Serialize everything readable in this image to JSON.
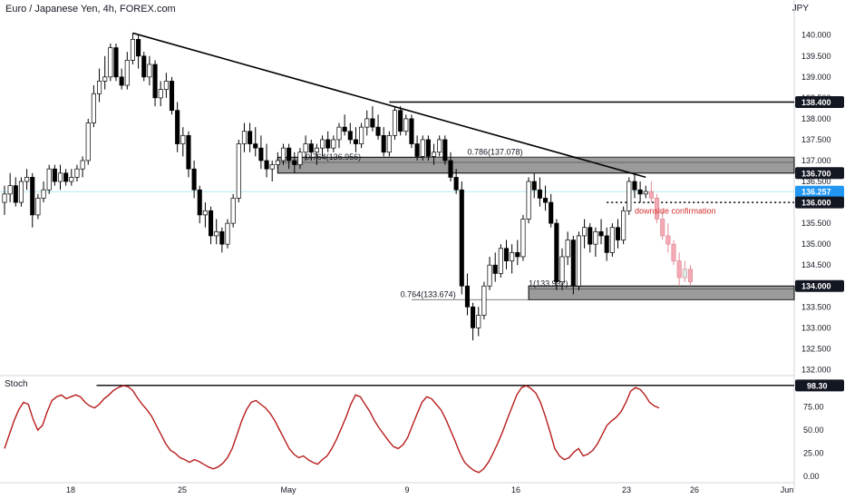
{
  "header": {
    "title": "Euro / Japanese Yen, 4h, FOREX.com",
    "currency": "JPY"
  },
  "stoch_label": "Stoch",
  "chart_data": {
    "type": "candlestick",
    "price_axis": {
      "ylim": [
        131.9,
        140.45
      ],
      "ticks": [
        "140.000",
        "139.500",
        "139.000",
        "138.500",
        "138.000",
        "137.500",
        "137.000",
        "136.500",
        "136.000",
        "135.500",
        "135.000",
        "134.500",
        "134.000",
        "133.500",
        "133.000",
        "132.500",
        "132.000"
      ],
      "tick_values": [
        140.0,
        139.5,
        139.0,
        138.5,
        138.0,
        137.5,
        137.0,
        136.5,
        136.0,
        135.5,
        135.0,
        134.5,
        134.0,
        133.5,
        133.0,
        132.5,
        132.0
      ]
    },
    "x_axis": {
      "ticks": [
        "18",
        "25",
        "May",
        "9",
        "16",
        "23",
        "26",
        "Jun"
      ]
    },
    "price_labels": [
      {
        "text": "138.400",
        "value": 138.4,
        "style": "dark"
      },
      {
        "text": "136.700",
        "value": 136.7,
        "style": "dark"
      },
      {
        "text": "136.257",
        "value": 136.257,
        "style": "blue",
        "sub": "03:17:40"
      },
      {
        "text": "136.000",
        "value": 136.0,
        "style": "dark"
      },
      {
        "text": "134.000",
        "value": 134.0,
        "style": "dark"
      }
    ],
    "horizontal_lines": [
      {
        "value": 138.4,
        "from_time": 69,
        "style": "solid"
      },
      {
        "value": 136.0,
        "from_time": 108,
        "style": "dotted"
      }
    ],
    "trendline": {
      "from": [
        23,
        140.05
      ],
      "to": [
        115,
        136.6
      ]
    },
    "zones": [
      {
        "from_time": 49,
        "low": 136.7,
        "high": 137.08
      },
      {
        "from_time": 94,
        "low": 133.67,
        "high": 134.0
      }
    ],
    "fib_levels": [
      {
        "label": "0.786(137.078)",
        "value": 137.078,
        "from_time": 75,
        "label_time": 83
      },
      {
        "label": "0.764(136.956)",
        "value": 136.956,
        "from_time": 49,
        "label_time": 54
      },
      {
        "label": "0.764(133.674)",
        "value": 133.674,
        "from_time": 73,
        "label_time": 71
      },
      {
        "label": "1(133.932)",
        "value": 133.932,
        "from_time": 94,
        "label_time": 94
      }
    ],
    "annotations": [
      {
        "text": "downside confirmation",
        "time": 113,
        "value": 135.8
      }
    ],
    "candles": [
      [
        136.0,
        136.4,
        135.7,
        136.2
      ],
      [
        136.2,
        136.7,
        136.0,
        136.4
      ],
      [
        136.4,
        136.6,
        135.9,
        136.0
      ],
      [
        136.0,
        136.6,
        135.9,
        136.5
      ],
      [
        136.5,
        136.8,
        136.3,
        136.6
      ],
      [
        136.6,
        136.7,
        135.4,
        135.7
      ],
      [
        135.7,
        136.2,
        135.6,
        136.1
      ],
      [
        136.1,
        136.5,
        136.0,
        136.3
      ],
      [
        136.3,
        136.9,
        136.2,
        136.8
      ],
      [
        136.8,
        136.9,
        136.4,
        136.5
      ],
      [
        136.5,
        136.9,
        136.3,
        136.7
      ],
      [
        136.7,
        136.8,
        136.4,
        136.5
      ],
      [
        136.5,
        136.8,
        136.4,
        136.6
      ],
      [
        136.6,
        136.9,
        136.5,
        136.8
      ],
      [
        136.8,
        137.1,
        136.6,
        137.0
      ],
      [
        137.0,
        138.0,
        136.9,
        137.9
      ],
      [
        137.9,
        138.8,
        137.8,
        138.6
      ],
      [
        138.6,
        139.2,
        138.4,
        138.9
      ],
      [
        138.9,
        139.5,
        138.7,
        139.0
      ],
      [
        139.0,
        139.8,
        138.9,
        139.7
      ],
      [
        139.7,
        139.8,
        138.9,
        139.0
      ],
      [
        139.0,
        139.2,
        138.7,
        138.8
      ],
      [
        138.8,
        139.6,
        138.7,
        139.4
      ],
      [
        139.4,
        140.05,
        139.3,
        139.9
      ],
      [
        139.9,
        140.0,
        139.2,
        139.5
      ],
      [
        139.5,
        139.6,
        138.9,
        139.0
      ],
      [
        139.0,
        139.5,
        138.8,
        139.3
      ],
      [
        139.3,
        139.4,
        138.3,
        138.5
      ],
      [
        138.5,
        138.9,
        138.3,
        138.7
      ],
      [
        138.7,
        139.1,
        138.5,
        138.9
      ],
      [
        138.9,
        139.0,
        138.1,
        138.2
      ],
      [
        138.2,
        138.4,
        137.2,
        137.4
      ],
      [
        137.4,
        137.8,
        137.1,
        137.6
      ],
      [
        137.6,
        137.7,
        136.6,
        136.8
      ],
      [
        136.8,
        137.0,
        136.1,
        136.3
      ],
      [
        136.3,
        136.4,
        135.5,
        135.7
      ],
      [
        135.7,
        136.0,
        135.4,
        135.8
      ],
      [
        135.8,
        135.9,
        135.0,
        135.2
      ],
      [
        135.2,
        135.6,
        135.0,
        135.3
      ],
      [
        135.3,
        135.4,
        134.8,
        135.0
      ],
      [
        135.0,
        135.6,
        134.9,
        135.5
      ],
      [
        135.5,
        136.2,
        135.4,
        136.1
      ],
      [
        136.1,
        137.5,
        136.0,
        137.4
      ],
      [
        137.4,
        137.9,
        137.2,
        137.7
      ],
      [
        137.7,
        137.9,
        137.2,
        137.4
      ],
      [
        137.4,
        137.8,
        137.1,
        137.3
      ],
      [
        137.3,
        137.6,
        136.8,
        137.0
      ],
      [
        137.0,
        137.4,
        136.6,
        136.8
      ],
      [
        136.8,
        137.0,
        136.5,
        136.9
      ],
      [
        136.9,
        137.2,
        136.8,
        137.0
      ],
      [
        137.0,
        137.4,
        136.9,
        137.3
      ],
      [
        137.3,
        137.4,
        136.8,
        137.0
      ],
      [
        137.0,
        137.2,
        136.7,
        136.9
      ],
      [
        136.9,
        137.3,
        136.8,
        137.2
      ],
      [
        137.2,
        137.6,
        137.0,
        137.4
      ],
      [
        137.4,
        137.5,
        137.0,
        137.2
      ],
      [
        137.2,
        137.4,
        136.9,
        137.3
      ],
      [
        137.3,
        137.6,
        137.1,
        137.5
      ],
      [
        137.5,
        137.7,
        137.2,
        137.3
      ],
      [
        137.3,
        137.6,
        137.2,
        137.5
      ],
      [
        137.5,
        137.9,
        137.3,
        137.8
      ],
      [
        137.8,
        138.1,
        137.6,
        137.7
      ],
      [
        137.7,
        137.9,
        137.4,
        137.5
      ],
      [
        137.5,
        137.8,
        137.2,
        137.4
      ],
      [
        137.4,
        137.9,
        137.3,
        137.8
      ],
      [
        137.8,
        138.2,
        137.6,
        138.0
      ],
      [
        138.0,
        138.3,
        137.7,
        137.8
      ],
      [
        137.8,
        138.1,
        137.5,
        137.6
      ],
      [
        137.6,
        137.8,
        137.1,
        137.2
      ],
      [
        137.2,
        137.7,
        137.1,
        137.6
      ],
      [
        137.6,
        138.3,
        137.5,
        138.2
      ],
      [
        138.2,
        138.3,
        137.6,
        137.7
      ],
      [
        137.7,
        138.1,
        137.6,
        138.0
      ],
      [
        138.0,
        138.1,
        137.3,
        137.4
      ],
      [
        137.4,
        137.6,
        137.0,
        137.1
      ],
      [
        137.1,
        137.6,
        137.0,
        137.5
      ],
      [
        137.5,
        137.6,
        137.0,
        137.1
      ],
      [
        137.1,
        137.4,
        136.9,
        137.2
      ],
      [
        137.2,
        137.6,
        137.1,
        137.5
      ],
      [
        137.5,
        137.6,
        136.9,
        137.0
      ],
      [
        137.0,
        137.2,
        136.5,
        136.6
      ],
      [
        136.6,
        136.8,
        136.2,
        136.3
      ],
      [
        136.3,
        136.5,
        133.8,
        134.0
      ],
      [
        134.0,
        134.3,
        133.3,
        133.5
      ],
      [
        133.5,
        133.6,
        132.7,
        133.0
      ],
      [
        133.0,
        133.5,
        132.8,
        133.3
      ],
      [
        133.3,
        134.1,
        133.2,
        134.0
      ],
      [
        134.0,
        134.7,
        133.9,
        134.5
      ],
      [
        134.5,
        134.8,
        134.1,
        134.3
      ],
      [
        134.3,
        135.0,
        134.2,
        134.9
      ],
      [
        134.9,
        135.1,
        134.4,
        134.6
      ],
      [
        134.6,
        135.0,
        134.3,
        134.8
      ],
      [
        134.8,
        135.1,
        134.5,
        134.7
      ],
      [
        134.7,
        135.7,
        134.6,
        135.6
      ],
      [
        135.6,
        136.6,
        135.5,
        136.5
      ],
      [
        136.5,
        136.7,
        136.1,
        136.3
      ],
      [
        136.3,
        136.6,
        135.9,
        136.1
      ],
      [
        136.1,
        136.4,
        135.8,
        136.0
      ],
      [
        136.0,
        136.2,
        135.4,
        135.5
      ],
      [
        135.5,
        135.6,
        133.9,
        134.1
      ],
      [
        134.1,
        134.9,
        133.9,
        134.7
      ],
      [
        134.7,
        135.3,
        134.5,
        135.1
      ],
      [
        135.1,
        135.2,
        133.8,
        134.0
      ],
      [
        134.0,
        135.3,
        133.9,
        135.2
      ],
      [
        135.2,
        135.6,
        134.9,
        135.4
      ],
      [
        135.4,
        135.5,
        134.8,
        135.0
      ],
      [
        135.0,
        135.4,
        134.7,
        135.3
      ],
      [
        135.3,
        135.6,
        135.0,
        135.2
      ],
      [
        135.2,
        135.4,
        134.6,
        134.8
      ],
      [
        134.8,
        135.5,
        134.7,
        135.4
      ],
      [
        135.4,
        135.6,
        134.9,
        135.1
      ],
      [
        135.1,
        135.9,
        135.0,
        135.8
      ],
      [
        135.8,
        136.6,
        135.7,
        136.5
      ],
      [
        136.5,
        136.7,
        136.1,
        136.3
      ],
      [
        136.3,
        136.5,
        136.0,
        136.2
      ],
      [
        136.2,
        136.4,
        136.1,
        136.26
      ]
    ],
    "projection": [
      [
        136.26,
        136.5,
        136.0,
        136.1
      ],
      [
        136.1,
        136.2,
        135.5,
        135.6
      ],
      [
        135.6,
        135.8,
        135.1,
        135.2
      ],
      [
        135.2,
        135.5,
        134.8,
        135.0
      ],
      [
        135.0,
        135.1,
        134.5,
        134.6
      ],
      [
        134.6,
        134.8,
        134.0,
        134.2
      ],
      [
        134.2,
        134.6,
        134.1,
        134.4
      ],
      [
        134.4,
        134.5,
        134.0,
        134.1
      ]
    ],
    "stoch": {
      "ylim": [
        -5,
        105
      ],
      "ticks": [
        "98.30",
        "75.00",
        "50.00",
        "25.00",
        "0.00"
      ],
      "tick_values": [
        98.3,
        75.0,
        50.0,
        25.0,
        0.0
      ],
      "level_line": {
        "value": 98.3,
        "label": "98.30",
        "from_time": 29
      },
      "k": [
        30,
        45,
        60,
        72,
        80,
        78,
        62,
        50,
        55,
        70,
        82,
        86,
        88,
        84,
        86,
        88,
        86,
        80,
        76,
        74,
        78,
        84,
        88,
        93,
        96,
        98,
        97,
        93,
        85,
        78,
        72,
        65,
        55,
        45,
        35,
        28,
        25,
        20,
        18,
        15,
        18,
        16,
        13,
        10,
        8,
        10,
        14,
        20,
        30,
        45,
        60,
        72,
        80,
        82,
        78,
        74,
        68,
        60,
        50,
        40,
        30,
        24,
        20,
        22,
        18,
        15,
        13,
        18,
        22,
        30,
        40,
        52,
        64,
        78,
        88,
        86,
        78,
        70,
        60,
        52,
        45,
        38,
        32,
        30,
        34,
        42,
        55,
        68,
        80,
        86,
        84,
        78,
        72,
        62,
        50,
        38,
        25,
        15,
        10,
        6,
        4,
        8,
        15,
        25,
        36,
        48,
        62,
        75,
        88,
        96,
        98,
        95,
        90,
        80,
        65,
        48,
        30,
        22,
        18,
        20,
        26,
        30,
        22,
        24,
        28,
        35,
        45,
        55,
        60,
        64,
        70,
        80,
        92,
        96,
        94,
        88,
        80,
        76,
        74
      ]
    }
  }
}
